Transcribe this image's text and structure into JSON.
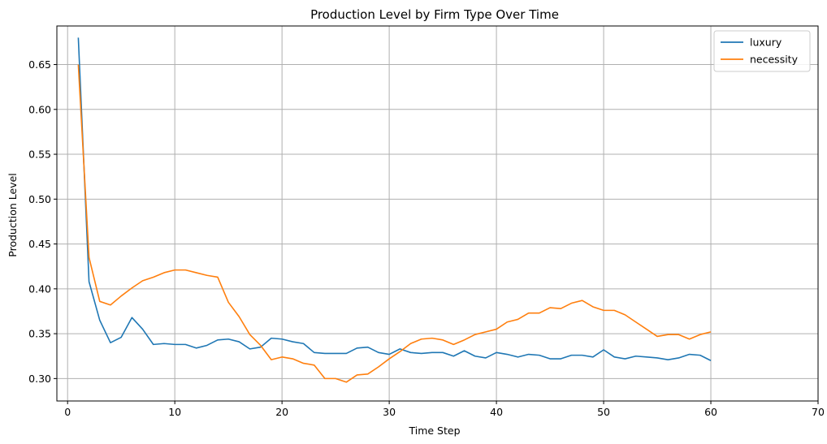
{
  "chart_data": {
    "type": "line",
    "title": "Production Level by Firm Type Over Time",
    "xlabel": "Time Step",
    "ylabel": "Production Level",
    "xlim": [
      -1,
      70
    ],
    "ylim": [
      0.275,
      0.693
    ],
    "xticks": [
      0,
      10,
      20,
      30,
      40,
      50,
      60,
      70
    ],
    "yticks": [
      0.3,
      0.35,
      0.4,
      0.45,
      0.5,
      0.55,
      0.6,
      0.65
    ],
    "ytick_labels": [
      "0.30",
      "0.35",
      "0.40",
      "0.45",
      "0.50",
      "0.55",
      "0.60",
      "0.65"
    ],
    "grid": true,
    "legend_position": "top-right",
    "x": [
      1,
      2,
      3,
      4,
      5,
      6,
      7,
      8,
      9,
      10,
      11,
      12,
      13,
      14,
      15,
      16,
      17,
      18,
      19,
      20,
      21,
      22,
      23,
      24,
      25,
      26,
      27,
      28,
      29,
      30,
      31,
      32,
      33,
      34,
      35,
      36,
      37,
      38,
      39,
      40,
      41,
      42,
      43,
      44,
      45,
      46,
      47,
      48,
      49,
      50,
      51,
      52,
      53,
      54,
      55,
      56,
      57,
      58,
      59,
      60
    ],
    "series": [
      {
        "name": "luxury",
        "color": "#1f77b4",
        "values": [
          0.68,
          0.408,
          0.365,
          0.34,
          0.346,
          0.368,
          0.355,
          0.338,
          0.339,
          0.338,
          0.338,
          0.334,
          0.337,
          0.343,
          0.344,
          0.341,
          0.333,
          0.335,
          0.345,
          0.344,
          0.341,
          0.339,
          0.329,
          0.328,
          0.328,
          0.328,
          0.334,
          0.335,
          0.329,
          0.327,
          0.333,
          0.329,
          0.328,
          0.329,
          0.329,
          0.325,
          0.331,
          0.325,
          0.323,
          0.329,
          0.327,
          0.324,
          0.327,
          0.326,
          0.322,
          0.322,
          0.326,
          0.326,
          0.324,
          0.332,
          0.324,
          0.322,
          0.325,
          0.324,
          0.323,
          0.321,
          0.323,
          0.327,
          0.326,
          0.32
        ]
      },
      {
        "name": "necessity",
        "color": "#ff7f0e",
        "values": [
          0.65,
          0.435,
          0.386,
          0.382,
          0.392,
          0.401,
          0.409,
          0.413,
          0.418,
          0.421,
          0.421,
          0.418,
          0.415,
          0.413,
          0.385,
          0.369,
          0.349,
          0.337,
          0.321,
          0.324,
          0.322,
          0.317,
          0.315,
          0.3,
          0.3,
          0.296,
          0.304,
          0.305,
          0.313,
          0.322,
          0.33,
          0.339,
          0.344,
          0.345,
          0.343,
          0.338,
          0.343,
          0.349,
          0.352,
          0.355,
          0.363,
          0.366,
          0.373,
          0.373,
          0.379,
          0.378,
          0.384,
          0.387,
          0.38,
          0.376,
          0.376,
          0.371,
          0.363,
          0.355,
          0.347,
          0.349,
          0.349,
          0.344,
          0.349,
          0.352
        ]
      }
    ]
  }
}
